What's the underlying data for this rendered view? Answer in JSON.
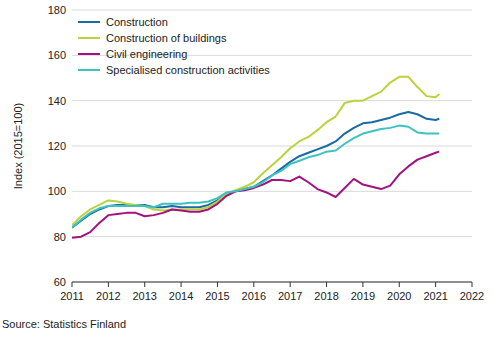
{
  "chart_data": {
    "type": "line",
    "y_label": "Index (2015=100)",
    "source": "Source: Statistics Finland",
    "x": [
      2011,
      2011.25,
      2011.5,
      2011.75,
      2012,
      2012.25,
      2012.5,
      2012.75,
      2013,
      2013.25,
      2013.5,
      2013.75,
      2014,
      2014.25,
      2014.5,
      2014.75,
      2015,
      2015.25,
      2015.5,
      2015.75,
      2016,
      2016.25,
      2016.5,
      2016.75,
      2017,
      2017.25,
      2017.5,
      2017.75,
      2018,
      2018.25,
      2018.5,
      2018.75,
      2019,
      2019.25,
      2019.5,
      2019.75,
      2020,
      2020.25,
      2020.5,
      2020.75,
      2021,
      2021.1
    ],
    "series": [
      {
        "name": "Construction",
        "color": "#1a6aa3",
        "values": [
          84,
          87,
          90,
          92,
          93.5,
          94,
          94,
          94,
          94,
          93,
          93,
          93.5,
          93,
          93,
          93,
          94,
          96,
          99,
          100,
          101,
          102,
          104.5,
          107,
          110,
          113,
          115.5,
          117,
          118.5,
          120,
          122,
          125.5,
          128,
          130,
          130.5,
          131.5,
          132.5,
          134,
          135,
          134,
          132,
          131.5,
          132
        ]
      },
      {
        "name": "Construction of buildings",
        "color": "#b9d43a",
        "values": [
          85,
          89,
          92,
          94,
          96,
          95.5,
          94.5,
          94,
          93.5,
          92,
          91.5,
          92,
          92,
          92,
          92,
          93,
          95.5,
          99,
          100.5,
          102,
          104,
          108,
          111.5,
          115,
          119,
          122,
          124,
          127,
          130.5,
          133,
          139,
          140,
          140,
          142,
          144,
          148,
          150.5,
          150.5,
          146,
          142,
          141.5,
          143
        ]
      },
      {
        "name": "Civil engineering",
        "color": "#a3127f",
        "values": [
          79.5,
          80,
          82,
          86,
          89.5,
          90,
          90.5,
          90.5,
          89,
          89.5,
          90.5,
          92,
          91.5,
          91,
          91,
          92,
          94.5,
          98,
          100,
          100.5,
          101.5,
          103,
          105,
          105,
          104.5,
          106.5,
          104,
          101,
          99.5,
          97.5,
          101.5,
          105.5,
          103,
          102,
          101,
          102.5,
          107.5,
          111,
          114,
          115.5,
          117,
          117.5
        ]
      },
      {
        "name": "Specialised construction activities",
        "color": "#3ec1c1",
        "values": [
          84,
          87.5,
          90.5,
          92.5,
          93.5,
          93.5,
          93.5,
          93.5,
          93.5,
          93,
          94.5,
          94.5,
          94.5,
          95,
          95,
          95.5,
          97,
          99.5,
          100,
          101,
          102,
          104,
          107,
          109,
          112,
          113.5,
          115,
          116,
          117.5,
          118,
          121,
          123.5,
          125.5,
          126.5,
          127.5,
          128,
          129,
          128.5,
          126,
          125.5,
          125.5,
          125.5
        ]
      }
    ],
    "xlim": [
      2011,
      2022
    ],
    "xticks": [
      2011,
      2012,
      2013,
      2014,
      2015,
      2016,
      2017,
      2018,
      2019,
      2020,
      2021,
      2022
    ],
    "ylim": [
      60,
      180
    ],
    "yticks": [
      60,
      80,
      100,
      120,
      140,
      160,
      180
    ],
    "grid": true,
    "legend": "upper left"
  }
}
